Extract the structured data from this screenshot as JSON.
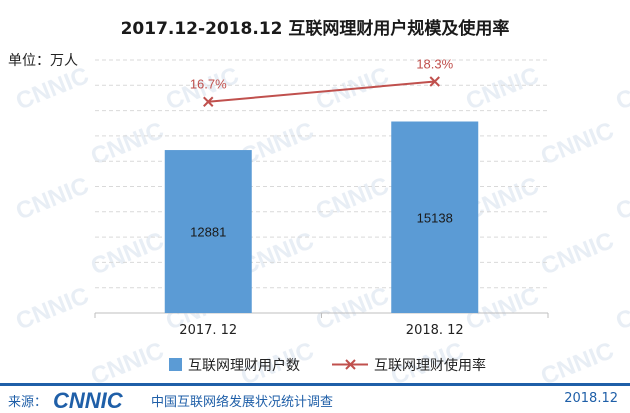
{
  "title": "2017.12-2018.12 互联网理财用户规模及使用率",
  "unit_label": "单位：万人",
  "chart_data": {
    "type": "bar",
    "categories": [
      "2017. 12",
      "2018. 12"
    ],
    "series": [
      {
        "name": "互联网理财用户数",
        "type": "bar",
        "values": [
          12881,
          15138
        ],
        "labels": [
          "12881",
          "15138"
        ],
        "color": "#5b9bd5"
      },
      {
        "name": "互联网理财使用率",
        "type": "line",
        "values": [
          16.7,
          18.3
        ],
        "labels": [
          "16.7%",
          "18.3%"
        ],
        "color": "#c0504d"
      }
    ],
    "ylim": [
      0,
      20000
    ],
    "y2lim": [
      0,
      20
    ],
    "grid": true,
    "legend": "bottom"
  },
  "footer": {
    "source_label": "来源：",
    "logo_text": "CNNIC",
    "org_name": "中国互联网络发展状况统计调查",
    "date": "2018.12"
  },
  "watermark": "CNNIC",
  "colors": {
    "bar": "#5b9bd5",
    "line": "#c0504d",
    "brand": "#1f5fa8"
  }
}
